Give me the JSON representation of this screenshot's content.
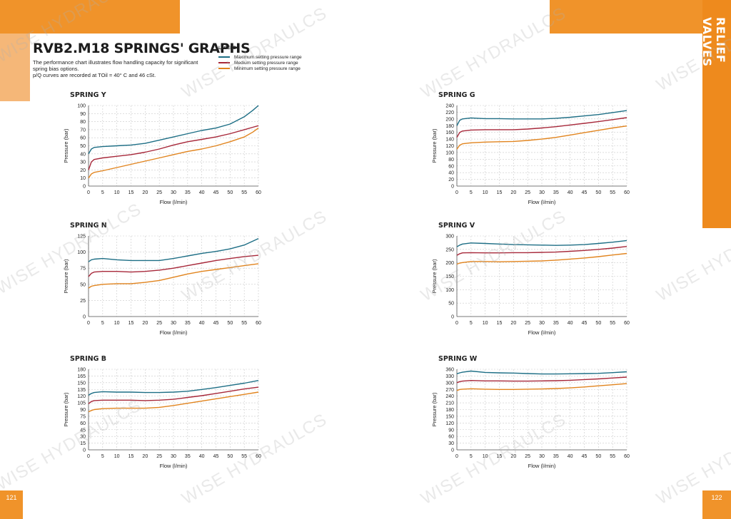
{
  "page": {
    "title": "RVB2.M18 SPRINGS' GRAPHS",
    "intro_line1": "The performance chart illustrates flow handling capacity for significant spring bias options.",
    "intro_line2": "p/Q curves are recorded at TOil = 40° C and 46 cSt.",
    "side_label": "RELIEF VALVES",
    "page_left": "121",
    "page_right": "122",
    "watermark": "WISE HYDRAULCS"
  },
  "legend": {
    "title": "LEGEND",
    "items": [
      {
        "label": "Maximum setting pressure range",
        "color": "#1d6e85"
      },
      {
        "label": "Medium setting pressure range",
        "color": "#a7283a"
      },
      {
        "label": "Minimum setting pressure range",
        "color": "#e1841e"
      }
    ]
  },
  "colors": {
    "accent": "#f0932a",
    "max": "#1d6e85",
    "med": "#a7283a",
    "min": "#e1841e",
    "grid": "#c9c9c9"
  },
  "chart_data": [
    {
      "id": "spring-y",
      "type": "line",
      "title": "SPRING Y",
      "xlabel": "Flow (l/min)",
      "ylabel": "Pressure (bar)",
      "xlim": [
        0,
        60
      ],
      "ylim": [
        0,
        100
      ],
      "xticks": [
        0,
        5,
        10,
        15,
        20,
        25,
        30,
        35,
        40,
        45,
        50,
        55,
        60
      ],
      "yticks": [
        0,
        10,
        20,
        30,
        40,
        50,
        60,
        70,
        80,
        90,
        100
      ],
      "grid": true,
      "x": [
        0,
        1,
        2,
        5,
        10,
        15,
        20,
        25,
        30,
        35,
        40,
        45,
        50,
        55,
        58,
        60
      ],
      "series": [
        {
          "name": "Maximum setting pressure range",
          "values": [
            40,
            46,
            48,
            49,
            50,
            51,
            53,
            57,
            61,
            65,
            69,
            72,
            77,
            86,
            94,
            100
          ]
        },
        {
          "name": "Medium setting pressure range",
          "values": [
            20,
            30,
            33,
            35,
            37,
            39,
            42,
            46,
            51,
            55,
            58,
            61,
            65,
            70,
            73,
            75
          ]
        },
        {
          "name": "Minimum setting pressure range",
          "values": [
            10,
            15,
            17,
            19,
            23,
            27,
            31,
            35,
            39,
            43,
            46,
            50,
            55,
            61,
            67,
            72
          ]
        }
      ]
    },
    {
      "id": "spring-g",
      "type": "line",
      "title": "SPRING G",
      "xlabel": "Flow (l/min)",
      "ylabel": "Pressure (bar)",
      "xlim": [
        0,
        60
      ],
      "ylim": [
        0,
        240
      ],
      "xticks": [
        0,
        5,
        10,
        15,
        20,
        25,
        30,
        35,
        40,
        45,
        50,
        55,
        60
      ],
      "yticks": [
        0,
        20,
        40,
        60,
        80,
        100,
        120,
        140,
        160,
        180,
        200,
        220,
        240
      ],
      "grid": true,
      "x": [
        0,
        1,
        2,
        5,
        10,
        15,
        20,
        25,
        30,
        35,
        40,
        45,
        50,
        55,
        60
      ],
      "series": [
        {
          "name": "Maximum setting pressure range",
          "values": [
            180,
            196,
            200,
            203,
            201,
            201,
            200,
            200,
            200,
            202,
            205,
            209,
            213,
            219,
            225
          ]
        },
        {
          "name": "Medium setting pressure range",
          "values": [
            145,
            160,
            164,
            167,
            168,
            168,
            168,
            170,
            173,
            177,
            182,
            187,
            192,
            198,
            204
          ]
        },
        {
          "name": "Minimum setting pressure range",
          "values": [
            110,
            122,
            126,
            129,
            131,
            132,
            133,
            136,
            140,
            145,
            152,
            159,
            166,
            173,
            179
          ]
        }
      ]
    },
    {
      "id": "spring-n",
      "type": "line",
      "title": "SPRING N",
      "xlabel": "Flow (l/min)",
      "ylabel": "Pressure (bar)",
      "xlim": [
        0,
        60
      ],
      "ylim": [
        0,
        125
      ],
      "xticks": [
        0,
        5,
        10,
        15,
        20,
        25,
        30,
        35,
        40,
        45,
        50,
        55,
        60
      ],
      "yticks": [
        0,
        25,
        50,
        75,
        100,
        125
      ],
      "grid": true,
      "x": [
        0,
        1,
        2,
        5,
        10,
        15,
        20,
        25,
        30,
        35,
        40,
        45,
        50,
        55,
        60
      ],
      "series": [
        {
          "name": "Maximum setting pressure range",
          "values": [
            85,
            88,
            89,
            90,
            88,
            87,
            87,
            87,
            90,
            94,
            98,
            101,
            105,
            111,
            121
          ]
        },
        {
          "name": "Medium setting pressure range",
          "values": [
            62,
            67,
            69,
            70,
            70,
            69,
            70,
            72,
            75,
            79,
            83,
            87,
            90,
            93,
            95
          ]
        },
        {
          "name": "Minimum setting pressure range",
          "values": [
            44,
            47,
            48,
            50,
            51,
            51,
            53,
            56,
            61,
            66,
            70,
            73,
            76,
            79,
            82
          ]
        }
      ]
    },
    {
      "id": "spring-v",
      "type": "line",
      "title": "SPRING V",
      "xlabel": "Flow (l/min)",
      "ylabel": "Pressure (bar)",
      "xlim": [
        0,
        60
      ],
      "ylim": [
        0,
        300
      ],
      "xticks": [
        0,
        5,
        10,
        15,
        20,
        25,
        30,
        35,
        40,
        45,
        50,
        55,
        60
      ],
      "yticks": [
        0,
        50,
        100,
        150,
        200,
        250,
        300
      ],
      "grid": true,
      "x": [
        0,
        1,
        2,
        5,
        10,
        15,
        20,
        25,
        30,
        35,
        40,
        45,
        50,
        55,
        60
      ],
      "series": [
        {
          "name": "Maximum setting pressure range",
          "values": [
            260,
            266,
            270,
            274,
            272,
            270,
            268,
            267,
            266,
            265,
            266,
            268,
            272,
            277,
            283
          ]
        },
        {
          "name": "Medium setting pressure range",
          "values": [
            228,
            234,
            237,
            238,
            237,
            237,
            238,
            238,
            239,
            240,
            243,
            246,
            250,
            255,
            261
          ]
        },
        {
          "name": "Minimum setting pressure range",
          "values": [
            195,
            199,
            201,
            205,
            205,
            204,
            205,
            206,
            207,
            210,
            214,
            218,
            223,
            229,
            235
          ]
        }
      ]
    },
    {
      "id": "spring-b",
      "type": "line",
      "title": "SPRING B",
      "xlabel": "Flow (l/min)",
      "ylabel": "Pressure (bar)",
      "xlim": [
        0,
        60
      ],
      "ylim": [
        0,
        180
      ],
      "xticks": [
        0,
        5,
        10,
        15,
        20,
        25,
        30,
        35,
        40,
        45,
        50,
        55,
        60
      ],
      "yticks": [
        0,
        15,
        30,
        45,
        60,
        75,
        90,
        105,
        120,
        135,
        150,
        165,
        180
      ],
      "grid": true,
      "x": [
        0,
        1,
        2,
        5,
        10,
        15,
        20,
        25,
        30,
        35,
        40,
        45,
        50,
        55,
        60
      ],
      "series": [
        {
          "name": "Maximum setting pressure range",
          "values": [
            122,
            126,
            128,
            130,
            129,
            129,
            128,
            128,
            129,
            131,
            135,
            139,
            144,
            149,
            155
          ]
        },
        {
          "name": "Medium setting pressure range",
          "values": [
            103,
            108,
            110,
            111,
            111,
            111,
            110,
            111,
            113,
            117,
            121,
            126,
            131,
            136,
            140
          ]
        },
        {
          "name": "Minimum setting pressure range",
          "values": [
            85,
            88,
            90,
            92,
            93,
            93,
            93,
            95,
            99,
            104,
            109,
            114,
            119,
            124,
            129
          ]
        }
      ]
    },
    {
      "id": "spring-w",
      "type": "line",
      "title": "SPRING W",
      "xlabel": "Flow (l/min)",
      "ylabel": "Pressure (bar)",
      "xlim": [
        0,
        60
      ],
      "ylim": [
        0,
        360
      ],
      "xticks": [
        0,
        5,
        10,
        15,
        20,
        25,
        30,
        35,
        40,
        45,
        50,
        55,
        60
      ],
      "yticks": [
        0,
        30,
        60,
        90,
        120,
        150,
        180,
        210,
        240,
        270,
        300,
        330,
        360
      ],
      "grid": true,
      "x": [
        0,
        1,
        2,
        5,
        10,
        15,
        20,
        25,
        30,
        35,
        40,
        45,
        50,
        55,
        60
      ],
      "series": [
        {
          "name": "Maximum setting pressure range",
          "values": [
            340,
            344,
            347,
            352,
            346,
            344,
            343,
            341,
            339,
            339,
            340,
            341,
            342,
            345,
            349
          ]
        },
        {
          "name": "Medium setting pressure range",
          "values": [
            300,
            305,
            307,
            310,
            308,
            308,
            307,
            307,
            308,
            309,
            311,
            314,
            317,
            321,
            325
          ]
        },
        {
          "name": "Minimum setting pressure range",
          "values": [
            265,
            270,
            271,
            273,
            271,
            270,
            270,
            271,
            272,
            274,
            277,
            281,
            286,
            291,
            296
          ]
        }
      ]
    }
  ]
}
